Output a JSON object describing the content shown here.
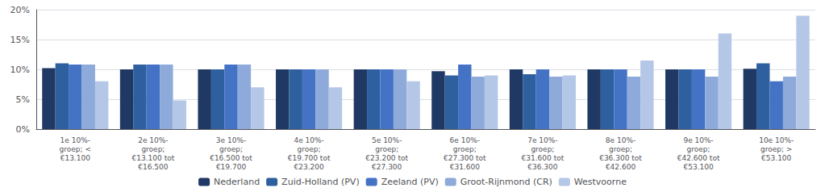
{
  "chart_data": {
    "type": "bar",
    "categories": [
      "1e 10%-\ngroep; <\n€13.100",
      "2e 10%-\ngroep;\n€13.100 tot\n€16.500",
      "3e 10%-\ngroep;\n€16.500 tot\n€19.700",
      "4e 10%-\ngroep;\n€19.700 tot\n€23.200",
      "5e 10%-\ngroep;\n€23.200 tot\n€27.300",
      "6e 10%-\ngroep;\n€27.300 tot\n€31.600",
      "7e 10%-\ngroep;\n€31.600 tot\n€36.300",
      "8e 10%-\ngroep;\n€36.300 tot\n€42.600",
      "9e 10%-\ngroep;\n€42.600 tot\n€53.100",
      "10e 10%-\ngroep; >\n€53.100"
    ],
    "series": [
      {
        "name": "Nederland",
        "color": "#1f3864",
        "values": [
          10.2,
          10.0,
          10.0,
          10.0,
          10.0,
          9.7,
          10.0,
          10.0,
          10.0,
          10.1
        ]
      },
      {
        "name": "Zuid-Holland (PV)",
        "color": "#2e5f9e",
        "values": [
          11.0,
          10.8,
          10.0,
          10.0,
          10.0,
          9.0,
          9.2,
          10.0,
          10.0,
          11.0
        ]
      },
      {
        "name": "Zeeland (PV)",
        "color": "#4472c4",
        "values": [
          10.8,
          10.8,
          10.8,
          10.0,
          10.0,
          10.8,
          10.0,
          10.0,
          10.0,
          8.0
        ]
      },
      {
        "name": "Groot-Rijnmond (CR)",
        "color": "#8eaadb",
        "values": [
          10.8,
          10.8,
          10.8,
          10.0,
          10.0,
          8.8,
          8.8,
          8.8,
          8.8,
          8.8
        ]
      },
      {
        "name": "Westvoorne",
        "color": "#b4c7e7",
        "values": [
          8.0,
          4.8,
          7.0,
          7.0,
          8.0,
          9.0,
          9.0,
          11.5,
          16.0,
          19.0
        ]
      }
    ],
    "ylim": [
      0,
      20
    ],
    "yticks": [
      {
        "value": 0,
        "label": "0%"
      },
      {
        "value": 5,
        "label": "5%"
      },
      {
        "value": 10,
        "label": "10%"
      },
      {
        "value": 15,
        "label": "15%"
      },
      {
        "value": 20,
        "label": "20%"
      }
    ],
    "grid": true,
    "legend": "bottom"
  }
}
